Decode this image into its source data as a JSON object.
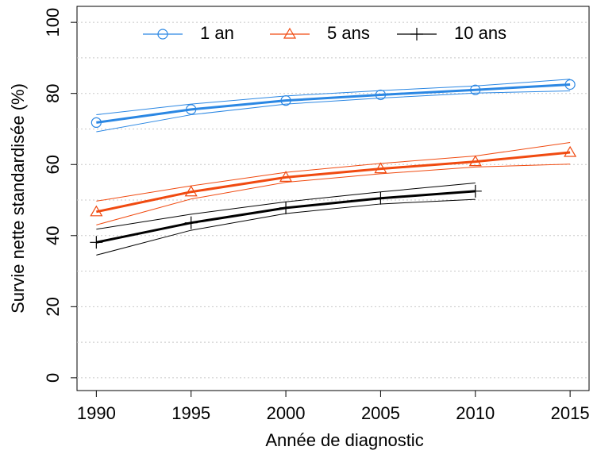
{
  "chart_data": {
    "type": "line",
    "xlabel": "Année de diagnostic",
    "ylabel": "Survie nette standardisée (%)",
    "x": [
      1990,
      1995,
      2000,
      2005,
      2010,
      2015
    ],
    "xlim": [
      1988.98,
      2016.0
    ],
    "xticks": [
      1990,
      1995,
      2000,
      2005,
      2010,
      2015
    ],
    "ylim": [
      -3.6,
      104.5
    ],
    "yticks": [
      0,
      20,
      40,
      60,
      80,
      100
    ],
    "yminor": [
      10,
      30,
      50,
      70,
      90
    ],
    "grid": true,
    "legend": "top",
    "series": [
      {
        "name": "1 an",
        "color": "#2b87e3",
        "marker": "circle",
        "values": [
          71.8,
          75.5,
          78,
          79.6,
          81,
          82.5
        ],
        "lower": [
          69.2,
          74,
          77,
          78.7,
          80.1,
          80.7
        ],
        "upper": [
          74,
          77,
          79.3,
          80.8,
          82.1,
          84
        ]
      },
      {
        "name": "5 ans",
        "color": "#f04a10",
        "marker": "triangle",
        "values": [
          46.7,
          52.3,
          56.4,
          58.8,
          60.8,
          63.4
        ],
        "lower": [
          43,
          50.3,
          55,
          57.4,
          59.3,
          60.1
        ],
        "upper": [
          49.7,
          54,
          57.8,
          60.3,
          62.4,
          66.2
        ]
      },
      {
        "name": "10 ans",
        "color": "#000000",
        "marker": "plus",
        "values": [
          38.1,
          43.6,
          47.8,
          50.5,
          52.5,
          null
        ],
        "lower": [
          34.5,
          41.5,
          46.2,
          48.9,
          50.2,
          null
        ],
        "upper": [
          41.8,
          46,
          49.5,
          52.3,
          54.8,
          null
        ]
      }
    ]
  }
}
